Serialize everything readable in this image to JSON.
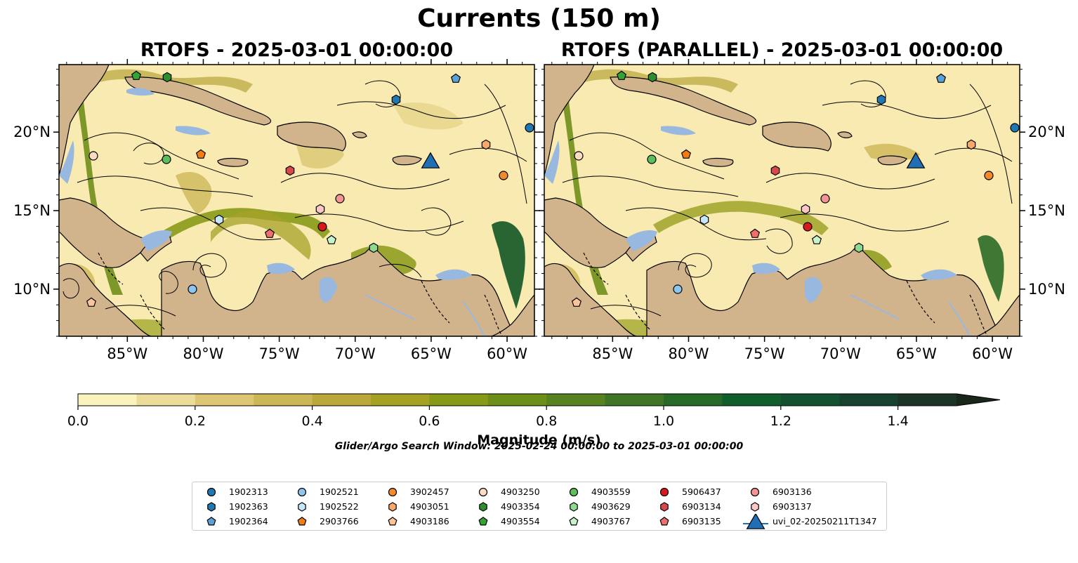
{
  "title": "Currents (150 m)",
  "panels": [
    {
      "title": "RTOFS - 2025-03-01 00:00:00"
    },
    {
      "title": "RTOFS (PARALLEL) - 2025-03-01 00:00:00"
    }
  ],
  "map": {
    "lon_range": [
      -89.5,
      -58.2
    ],
    "lat_range": [
      7,
      24.3
    ],
    "lon_ticks": [
      "85°W",
      "80°W",
      "75°W",
      "70°W",
      "65°W",
      "60°W"
    ],
    "lat_ticks": [
      "20°N",
      "15°N",
      "10°N"
    ],
    "colors": {
      "land": "#d2b48c",
      "water_shallow": "#99b8e0",
      "coast": "#000000"
    }
  },
  "colorbar": {
    "label": "Magnitude (m/s)",
    "ticks": [
      "0.0",
      "0.2",
      "0.4",
      "0.6",
      "0.8",
      "1.0",
      "1.2",
      "1.4"
    ],
    "min": 0,
    "max": 1.5,
    "extend": "max",
    "colors": [
      "#fbf3bd",
      "#ecdc9a",
      "#ddc574",
      "#cdb656",
      "#bba83a",
      "#a4a125",
      "#879a17",
      "#6d8e19",
      "#56821f",
      "#3f7524",
      "#276a27",
      "#115e2d",
      "#135130",
      "#17432e",
      "#1b3424",
      "#19261a"
    ]
  },
  "search_window": "Glider/Argo Search Window: 2025-02-24 00:00:00 to 2025-03-01 00:00:00",
  "legend": [
    {
      "label": "1902313",
      "marker": "circle",
      "color": "#1f78b4"
    },
    {
      "label": "1902363",
      "marker": "hexagon",
      "color": "#1f78b4"
    },
    {
      "label": "1902364",
      "marker": "pentagon",
      "color": "#5aa1d6"
    },
    {
      "label": "1902521",
      "marker": "circle",
      "color": "#8ec5ef"
    },
    {
      "label": "1902522",
      "marker": "hexagon",
      "color": "#c6e6fa"
    },
    {
      "label": "2903766",
      "marker": "pentagon",
      "color": "#f57c12"
    },
    {
      "label": "3902457",
      "marker": "circle",
      "color": "#f58a2a"
    },
    {
      "label": "4903051",
      "marker": "hexagon",
      "color": "#f9a868"
    },
    {
      "label": "4903186",
      "marker": "pentagon",
      "color": "#fbc49a"
    },
    {
      "label": "4903250",
      "marker": "circle",
      "color": "#fddcc2"
    },
    {
      "label": "4903354",
      "marker": "hexagon",
      "color": "#2c8f2c"
    },
    {
      "label": "4903554",
      "marker": "pentagon",
      "color": "#34a534"
    },
    {
      "label": "4903559",
      "marker": "circle",
      "color": "#5cbf5c"
    },
    {
      "label": "4903629",
      "marker": "hexagon",
      "color": "#8fd88f"
    },
    {
      "label": "4903767",
      "marker": "pentagon",
      "color": "#c8f2c8"
    },
    {
      "label": "5906437",
      "marker": "circle",
      "color": "#d7191c"
    },
    {
      "label": "6903134",
      "marker": "hexagon",
      "color": "#d94848"
    },
    {
      "label": "6903135",
      "marker": "pentagon",
      "color": "#ef6f6f"
    },
    {
      "label": "6903136",
      "marker": "circle",
      "color": "#f59494"
    },
    {
      "label": "6903137",
      "marker": "hexagon",
      "color": "#fbc6c6"
    },
    {
      "label": "uvi_02-20250211T1347",
      "marker": "triangle",
      "color": "#1f6fb2"
    }
  ]
}
